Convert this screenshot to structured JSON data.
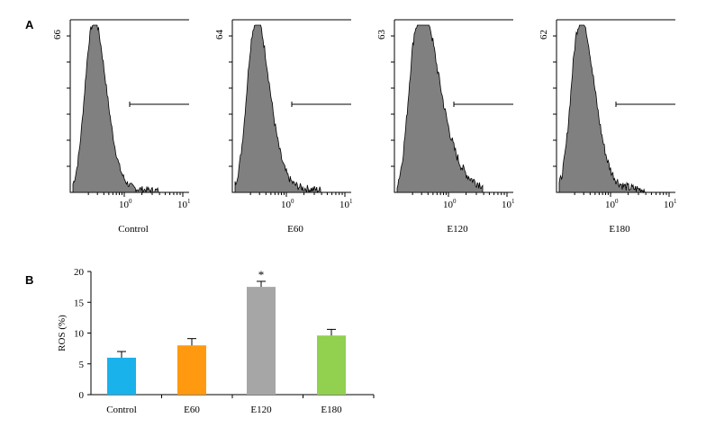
{
  "panel_a_label": "A",
  "panel_b_label": "B",
  "colors": {
    "hist_fill": "#808080",
    "axis": "#000000",
    "bar_colors": [
      "#1ab2ea",
      "#ff9a10",
      "#a6a6a6",
      "#92d050"
    ]
  },
  "chart_data": [
    {
      "type": "area",
      "subtype": "flow-cytometry-histograms",
      "x_scale": "log",
      "x_tick_labels": [
        "10^0",
        "10^1"
      ],
      "panels": [
        {
          "label": "Control",
          "y_max_label": "66",
          "tail": 0.25,
          "noise": 0.7
        },
        {
          "label": "E60",
          "y_max_label": "64",
          "tail": 0.35,
          "noise": 0.8
        },
        {
          "label": "E120",
          "y_max_label": "63",
          "tail": 1.0,
          "noise": 1.0
        },
        {
          "label": "E180",
          "y_max_label": "62",
          "tail": 0.4,
          "noise": 0.9
        }
      ]
    },
    {
      "type": "bar",
      "categories": [
        "Control",
        "E60",
        "E120",
        "E180"
      ],
      "values": [
        6.0,
        8.0,
        17.5,
        9.6
      ],
      "errors": [
        1.0,
        1.1,
        0.9,
        1.0
      ],
      "annotations": [
        "",
        "",
        "*",
        ""
      ],
      "ylabel": "ROS (%)",
      "ylim": [
        0,
        20
      ],
      "yticks": [
        0,
        5,
        10,
        15,
        20
      ]
    }
  ]
}
